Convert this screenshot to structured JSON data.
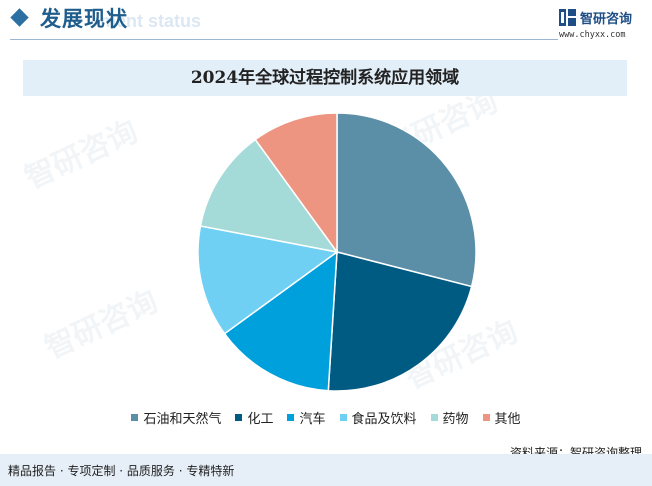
{
  "header": {
    "title": "发展现状",
    "subtitle": "ment status"
  },
  "logo": {
    "name": "智研咨询",
    "url": "www.chyxx.com"
  },
  "watermark_text": "智研咨询",
  "chart_data": {
    "type": "pie",
    "title": "2024年全球过程控制系统应用领域",
    "categories": [
      "石油和天然气",
      "化工",
      "汽车",
      "食品及饮料",
      "药物",
      "其他"
    ],
    "values": [
      29,
      22,
      14,
      13,
      12,
      10
    ],
    "colors": [
      "#5b8fa8",
      "#005b82",
      "#00a0dc",
      "#6fd0f4",
      "#a4dbd9",
      "#ed9580"
    ],
    "legend": "bottom",
    "start_angle": "top, clockwise"
  },
  "source_text": "资料来源：智研咨询整理",
  "footer_text": "精品报告 · 专项定制 · 品质服务 · 专精特新"
}
